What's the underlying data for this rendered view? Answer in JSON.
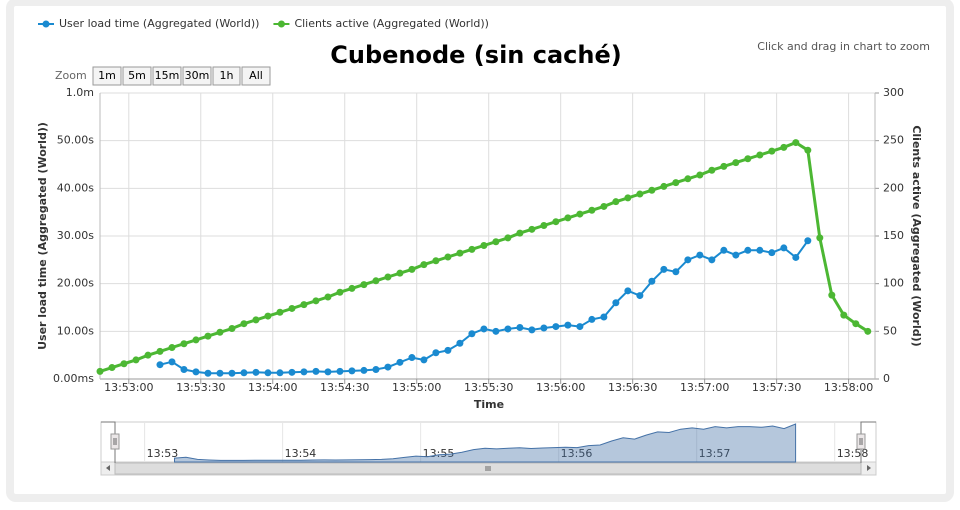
{
  "chart_data": {
    "type": "line",
    "title": "Cubenode (sin caché)",
    "subtitle": "Click and drag in chart to zoom",
    "x_label": "Time",
    "y_label": "User load time (Aggregated (World))",
    "y2_label": "Clients active (Aggregated (World))",
    "zoom_label": "Zoom",
    "zoom_buttons": [
      "1m",
      "5m",
      "15m",
      "30m",
      "1h",
      "All"
    ],
    "grid": true,
    "xlim": [
      49968,
      50291
    ],
    "xticks": [
      {
        "value": 49980,
        "label": "13:53:00"
      },
      {
        "value": 50010,
        "label": "13:53:30"
      },
      {
        "value": 50040,
        "label": "13:54:00"
      },
      {
        "value": 50070,
        "label": "13:54:30"
      },
      {
        "value": 50100,
        "label": "13:55:00"
      },
      {
        "value": 50130,
        "label": "13:55:30"
      },
      {
        "value": 50160,
        "label": "13:56:00"
      },
      {
        "value": 50190,
        "label": "13:56:30"
      },
      {
        "value": 50220,
        "label": "13:57:00"
      },
      {
        "value": 50250,
        "label": "13:57:30"
      },
      {
        "value": 50280,
        "label": "13:58:00"
      }
    ],
    "navigator_xticks": [
      {
        "value": 49980,
        "label": "13:53"
      },
      {
        "value": 50040,
        "label": "13:54"
      },
      {
        "value": 50100,
        "label": "13:55"
      },
      {
        "value": 50160,
        "label": "13:56"
      },
      {
        "value": 50220,
        "label": "13:57"
      },
      {
        "value": 50280,
        "label": "13:58"
      }
    ],
    "ylim": [
      0,
      60
    ],
    "yticks": [
      {
        "value": 0,
        "label": "0.00ms"
      },
      {
        "value": 10,
        "label": "10.00s"
      },
      {
        "value": 20,
        "label": "20.00s"
      },
      {
        "value": 30,
        "label": "30.00s"
      },
      {
        "value": 40,
        "label": "40.00s"
      },
      {
        "value": 50,
        "label": "50.00s"
      },
      {
        "value": 60,
        "label": "1.0m"
      }
    ],
    "y2lim": [
      0,
      300
    ],
    "y2ticks": [
      0,
      50,
      100,
      150,
      200,
      250,
      300
    ],
    "x": [
      49968,
      49973,
      49978,
      49983,
      49988,
      49993,
      49998,
      50003,
      50008,
      50013,
      50018,
      50023,
      50028,
      50033,
      50038,
      50043,
      50048,
      50053,
      50058,
      50063,
      50068,
      50073,
      50078,
      50083,
      50088,
      50093,
      50098,
      50103,
      50108,
      50113,
      50118,
      50123,
      50128,
      50133,
      50138,
      50143,
      50148,
      50153,
      50158,
      50163,
      50168,
      50173,
      50178,
      50183,
      50188,
      50193,
      50198,
      50203,
      50208,
      50213,
      50218,
      50223,
      50228,
      50233,
      50238,
      50243,
      50248,
      50253,
      50258,
      50263,
      50268,
      50273,
      50278,
      50283,
      50288
    ],
    "series": [
      {
        "name": "User load time (Aggregated (World))",
        "color": "#1a8ad0",
        "axis": "y",
        "values": [
          null,
          null,
          null,
          null,
          null,
          3,
          3.6,
          2,
          1.5,
          1.2,
          1.2,
          1.2,
          1.3,
          1.4,
          1.3,
          1.3,
          1.4,
          1.5,
          1.6,
          1.5,
          1.6,
          1.7,
          1.8,
          2,
          2.5,
          3.5,
          4.5,
          4,
          5.5,
          6,
          7.5,
          9.5,
          10.5,
          10,
          10.5,
          10.8,
          10.3,
          10.7,
          11,
          11.3,
          11,
          12.5,
          13,
          16,
          18.5,
          17.5,
          20.5,
          23,
          22.5,
          25,
          26,
          25,
          27,
          26,
          27,
          27,
          26.5,
          27.5,
          25.5,
          29,
          null,
          null,
          null,
          null,
          null
        ]
      },
      {
        "name": "Clients active (Aggregated (World))",
        "color": "#4cb733",
        "axis": "y2",
        "values": [
          8,
          12,
          16,
          20,
          25,
          29,
          33,
          37,
          41,
          45,
          49,
          53,
          58,
          62,
          66,
          70,
          74,
          78,
          82,
          86,
          91,
          95,
          99,
          103,
          107,
          111,
          115,
          120,
          124,
          128,
          132,
          136,
          140,
          144,
          148,
          153,
          157,
          161,
          165,
          169,
          173,
          177,
          181,
          186,
          190,
          194,
          198,
          202,
          206,
          210,
          214,
          219,
          223,
          227,
          231,
          235,
          239,
          243,
          248,
          240,
          148,
          88,
          67,
          58,
          50
        ]
      }
    ]
  }
}
